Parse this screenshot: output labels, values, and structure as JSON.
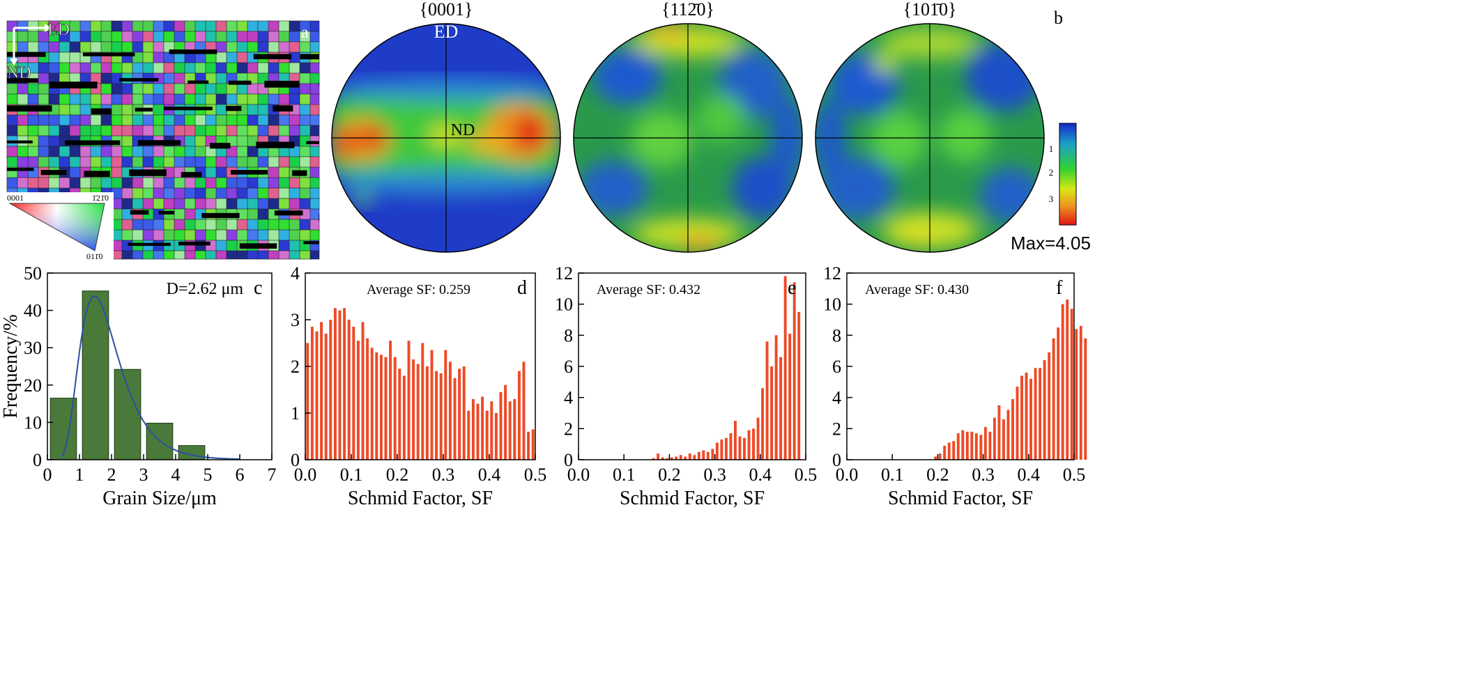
{
  "panel_a": {
    "letter": "a",
    "ed_label": "ED",
    "nd_label": "ND",
    "key_0001": "0001",
    "key_1210": "1̄21̄0",
    "key_0110": "011̄0"
  },
  "panel_b": {
    "letter": "b",
    "pole_titles": [
      "{0001}",
      "{112̄0}",
      "{101̄0}"
    ],
    "ed_label": "ED",
    "nd_label": "ND",
    "scale_ticks": [
      "1",
      "2",
      "3"
    ],
    "max_label": "Max=4.05"
  },
  "chart_data": [
    {
      "type": "bar",
      "letter": "c",
      "annotation": "D=2.62 μm",
      "xlabel": "Grain Size/μm",
      "ylabel": "Frequency/%",
      "xlim": [
        0,
        7
      ],
      "ylim": [
        0,
        50
      ],
      "xticks": [
        0,
        1,
        2,
        3,
        4,
        5,
        6,
        7
      ],
      "yticks": [
        0,
        10,
        20,
        30,
        40,
        50
      ],
      "bar_width": 0.82,
      "x": [
        0.5,
        1.5,
        2.5,
        3.5,
        4.5
      ],
      "values": [
        16.5,
        45.2,
        24.2,
        9.8,
        3.8
      ],
      "fit_curve": true,
      "bar_color": "#4a7a3a",
      "curve_color": "#2b4fa0"
    },
    {
      "type": "bar",
      "letter": "d",
      "annotation": "Average SF: 0.259",
      "xlabel": "Schmid Factor, SF",
      "xlim": [
        0,
        0.5
      ],
      "ylim": [
        0,
        4
      ],
      "xticks": [
        0.0,
        0.1,
        0.2,
        0.3,
        0.4,
        0.5
      ],
      "yticks": [
        0,
        1,
        2,
        3,
        4
      ],
      "bar_color": "#ee4a26",
      "bin_width": 0.01,
      "values": [
        2.5,
        2.85,
        2.75,
        2.95,
        2.7,
        3.0,
        3.25,
        3.2,
        3.25,
        3.0,
        2.85,
        2.55,
        2.95,
        2.6,
        2.4,
        2.3,
        2.25,
        2.2,
        2.55,
        2.2,
        1.95,
        1.8,
        2.55,
        2.15,
        2.05,
        2.5,
        2.0,
        2.35,
        1.9,
        1.85,
        2.35,
        2.1,
        1.75,
        1.95,
        2.0,
        1.05,
        1.3,
        1.2,
        1.35,
        1.05,
        1.25,
        1.0,
        1.45,
        1.6,
        1.25,
        1.3,
        1.9,
        2.1,
        0.6,
        0.65
      ]
    },
    {
      "type": "bar",
      "letter": "e",
      "annotation": "Average SF: 0.432",
      "xlabel": "Schmid Factor, SF",
      "xlim": [
        0,
        0.5
      ],
      "ylim": [
        0,
        12
      ],
      "xticks": [
        0.0,
        0.1,
        0.2,
        0.3,
        0.4,
        0.5
      ],
      "yticks": [
        0,
        2,
        4,
        6,
        8,
        10,
        12
      ],
      "bar_color": "#ee4a26",
      "bin_width": 0.01,
      "values": [
        0,
        0,
        0,
        0,
        0,
        0,
        0,
        0,
        0,
        0,
        0,
        0,
        0,
        0,
        0,
        0,
        0.1,
        0.4,
        0.15,
        0.1,
        0.15,
        0.2,
        0.3,
        0.2,
        0.4,
        0.3,
        0.5,
        0.6,
        0.5,
        0.7,
        1.1,
        1.3,
        1.4,
        1.7,
        2.5,
        1.5,
        1.4,
        1.9,
        2.0,
        2.7,
        4.6,
        7.6,
        6.0,
        8.0,
        6.6,
        11.8,
        8.1,
        11.4,
        9.5,
        0
      ]
    },
    {
      "type": "bar",
      "letter": "f",
      "annotation": "Average SF: 0.430",
      "xlabel": "Schmid Factor, SF",
      "xlim": [
        0,
        0.5
      ],
      "ylim": [
        0,
        12
      ],
      "xticks": [
        0.0,
        0.1,
        0.2,
        0.3,
        0.4,
        0.5
      ],
      "yticks": [
        0,
        2,
        4,
        6,
        8,
        10,
        12
      ],
      "bar_color": "#ee4a26",
      "bin_width": 0.01,
      "values": [
        0,
        0,
        0,
        0,
        0,
        0,
        0,
        0,
        0,
        0,
        0,
        0,
        0,
        0,
        0,
        0,
        0,
        0,
        0,
        0.2,
        0.4,
        0.9,
        1.1,
        1.2,
        1.7,
        1.9,
        1.8,
        1.8,
        1.7,
        1.6,
        2.1,
        1.8,
        2.7,
        3.5,
        2.6,
        3.2,
        3.9,
        4.7,
        5.4,
        5.6,
        5.2,
        5.9,
        5.9,
        6.4,
        6.9,
        7.8,
        8.5,
        10.0,
        10.3,
        9.7,
        8.4,
        8.6,
        7.8
      ]
    }
  ]
}
